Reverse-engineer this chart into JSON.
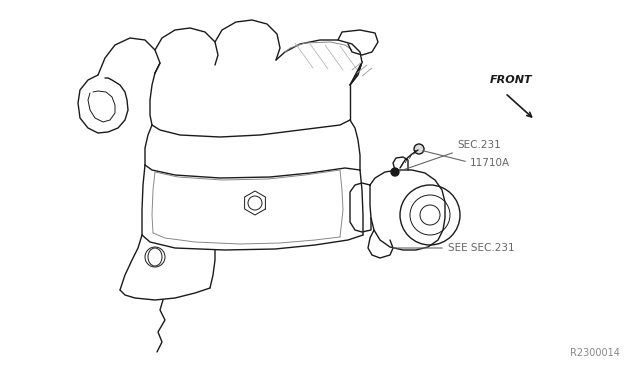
{
  "bg_color": "#ffffff",
  "line_color": "#1a1a1a",
  "label_color": "#666666",
  "fig_width": 6.4,
  "fig_height": 3.72,
  "dpi": 100,
  "part_number": "R2300014",
  "labels": {
    "sec231": "SEC.231",
    "part_id": "11710A",
    "see_sec231": "SEE SEC.231",
    "front": "FRONT"
  }
}
